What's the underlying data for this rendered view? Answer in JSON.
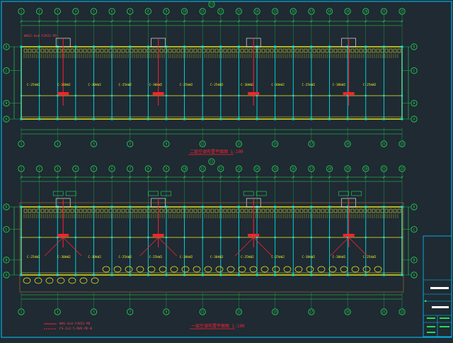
{
  "colors": {
    "background": "#1f2a33",
    "axis": "#22dd55",
    "wall": "#f0f020",
    "column": "#00e0e0",
    "highlight": "#ff2030",
    "text": "#f0f020",
    "white": "#ffffff",
    "frame": "#00c8ff"
  },
  "top_plan": {
    "axis_numbers": [
      "1",
      "2",
      "3",
      "4",
      "5",
      "6",
      "7",
      "8",
      "9",
      "10",
      "11",
      "12",
      "13",
      "14",
      "15",
      "16",
      "17",
      "18",
      "19",
      "20",
      "21",
      "22"
    ],
    "center_axis": "11",
    "bottom_axis_numbers": [
      "1",
      "3",
      "5",
      "7",
      "9",
      "11",
      "13",
      "15",
      "17",
      "19",
      "21",
      "22"
    ],
    "row_labels": [
      "D",
      "C",
      "B",
      "A"
    ],
    "annotation": "WXG2-4x4-YJV22-PD",
    "room_labels": [
      "C-25kW2",
      "C-30kW2",
      "C-30kW2",
      "C-25kW2",
      "C-30kW2",
      "C-25kW2",
      "C-25kW2",
      "C-30kW2",
      "C-30kW2",
      "C-25kW2",
      "C-30kW2",
      "C-25kW2"
    ],
    "title": "二层空调布置平面图 1:100"
  },
  "bottom_plan": {
    "axis_numbers": [
      "1",
      "2",
      "3",
      "4",
      "5",
      "6",
      "7",
      "8",
      "9",
      "10",
      "11",
      "12",
      "13",
      "14",
      "15",
      "16",
      "17",
      "18",
      "19",
      "20",
      "21",
      "22"
    ],
    "center_axis": "11",
    "bottom_axis_numbers": [
      "1",
      "3",
      "5",
      "7",
      "9",
      "11",
      "13",
      "15",
      "17",
      "19",
      "21",
      "22"
    ],
    "row_labels": [
      "D",
      "C",
      "B",
      "A"
    ],
    "room_labels": [
      "C-25kW2",
      "C-30kW2",
      "C-30kW2",
      "C-25kW2",
      "C-25kW2",
      "C-30kW2",
      "C-30kW2",
      "C-25kW2",
      "C-25kW2",
      "C-30kW2",
      "C-30kW2",
      "C-25kW2"
    ],
    "legend": [
      "WXG-4x4-YJV22-PD",
      "FS-2x2.5-RVV-PE-B"
    ],
    "title": "一层空调布置平面图 1:100"
  },
  "title_block": {
    "rows": [
      "",
      "",
      "",
      "",
      ""
    ]
  }
}
